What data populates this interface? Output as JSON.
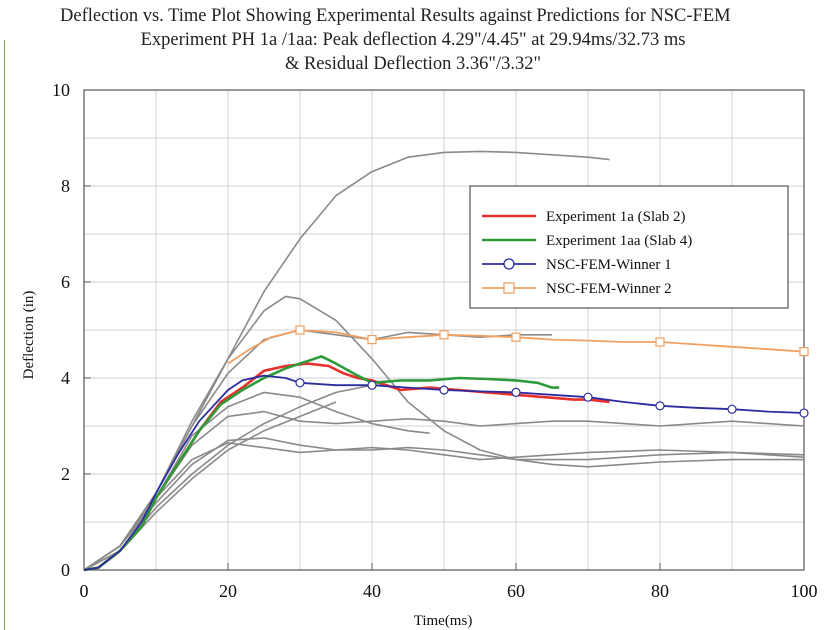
{
  "title_lines": [
    "Deflection vs. Time Plot Showing Experimental Results against Predictions for NSC-FEM",
    "Experiment PH 1a /1aa: Peak deflection 4.29\"/4.45\" at 29.94ms/32.73 ms",
    "& Residual Deflection 3.36\"/3.32\""
  ],
  "chart_data": {
    "type": "line",
    "xlabel": "Time(ms)",
    "ylabel": "Deflection (in)",
    "xlim": [
      0,
      100
    ],
    "ylim": [
      0,
      10
    ],
    "xticks": [
      "0",
      "20",
      "40",
      "60",
      "80",
      "100"
    ],
    "yticks": [
      "0",
      "2",
      "4",
      "6",
      "8",
      "10"
    ],
    "grid": true,
    "legend_position": "right",
    "colors": {
      "Experiment 1a (Slab 2)": "#e8302c",
      "Experiment 1aa (Slab 4)": "#2e9a3a",
      "NSC-FEM-Winner 1": "#2c2ca0",
      "NSC-FEM-Winner 2": "#f0a060",
      "other predictions": "#8a8a8a"
    },
    "series": [
      {
        "name": "Experiment 1a (Slab 2)",
        "x": [
          0,
          2,
          5,
          8,
          10,
          13,
          16,
          19,
          22,
          25,
          28,
          31,
          34,
          36,
          38,
          40,
          44,
          48,
          52,
          56,
          60,
          64,
          68,
          70,
          73
        ],
        "y": [
          0,
          0.05,
          0.4,
          0.9,
          1.5,
          2.2,
          2.9,
          3.5,
          3.8,
          4.15,
          4.25,
          4.3,
          4.25,
          4.1,
          4.0,
          3.95,
          3.75,
          3.8,
          3.75,
          3.7,
          3.65,
          3.6,
          3.55,
          3.55,
          3.5
        ]
      },
      {
        "name": "Experiment 1aa (Slab 4)",
        "x": [
          0,
          2,
          5,
          8,
          10,
          13,
          16,
          19,
          22,
          25,
          28,
          31,
          33,
          35,
          38,
          40,
          44,
          48,
          52,
          56,
          60,
          63,
          65,
          66
        ],
        "y": [
          0,
          0.05,
          0.4,
          0.9,
          1.5,
          2.2,
          2.9,
          3.45,
          3.75,
          4.0,
          4.2,
          4.35,
          4.45,
          4.3,
          4.05,
          3.9,
          3.95,
          3.95,
          4.0,
          3.98,
          3.95,
          3.9,
          3.8,
          3.8
        ]
      },
      {
        "name": "NSC-FEM-Winner 1",
        "x": [
          0,
          2,
          5,
          8,
          10,
          13,
          16,
          20,
          22,
          25,
          28,
          30,
          35,
          40,
          45,
          50,
          55,
          60,
          65,
          70,
          75,
          80,
          85,
          90,
          95,
          100
        ],
        "y": [
          0,
          0.05,
          0.4,
          1.0,
          1.6,
          2.4,
          3.1,
          3.75,
          3.95,
          4.05,
          4.0,
          3.9,
          3.85,
          3.85,
          3.8,
          3.75,
          3.72,
          3.7,
          3.65,
          3.6,
          3.5,
          3.42,
          3.38,
          3.35,
          3.3,
          3.27
        ],
        "markers_x": [
          30,
          40,
          50,
          60,
          70,
          80,
          90,
          100
        ]
      },
      {
        "name": "NSC-FEM-Winner 2",
        "x": [
          20,
          23,
          26,
          30,
          35,
          40,
          45,
          50,
          55,
          60,
          65,
          70,
          75,
          80,
          85,
          90,
          95,
          100
        ],
        "y": [
          4.3,
          4.6,
          4.85,
          5.0,
          4.95,
          4.8,
          4.85,
          4.9,
          4.88,
          4.85,
          4.8,
          4.78,
          4.75,
          4.75,
          4.7,
          4.65,
          4.6,
          4.55
        ],
        "markers_x": [
          30,
          40,
          50,
          60,
          80,
          100
        ]
      },
      {
        "name": "",
        "x": [
          0,
          5,
          10,
          15,
          20,
          25,
          30,
          35,
          40,
          45,
          50,
          55,
          60,
          65,
          70,
          73
        ],
        "y": [
          0,
          0.5,
          1.6,
          3.0,
          4.4,
          5.8,
          6.9,
          7.8,
          8.3,
          8.6,
          8.7,
          8.72,
          8.7,
          8.65,
          8.6,
          8.55
        ]
      },
      {
        "name": "",
        "x": [
          0,
          5,
          10,
          15,
          20,
          25,
          28,
          30,
          35,
          40,
          45,
          50,
          55,
          60,
          65,
          70,
          75,
          80,
          90,
          100
        ],
        "y": [
          0,
          0.5,
          1.6,
          3.1,
          4.4,
          5.4,
          5.7,
          5.65,
          5.2,
          4.4,
          3.5,
          2.9,
          2.5,
          2.3,
          2.2,
          2.15,
          2.2,
          2.25,
          2.3,
          2.3
        ]
      },
      {
        "name": "",
        "x": [
          0,
          5,
          10,
          15,
          20,
          25,
          30,
          35,
          40,
          45,
          50,
          55,
          60,
          65
        ],
        "y": [
          0,
          0.5,
          1.6,
          3.0,
          4.1,
          4.8,
          5.0,
          4.9,
          4.8,
          4.95,
          4.9,
          4.85,
          4.9,
          4.9
        ]
      },
      {
        "name": "",
        "x": [
          0,
          5,
          10,
          15,
          20,
          25,
          30,
          35,
          40,
          45,
          50,
          55,
          60,
          65,
          70,
          75,
          80,
          85,
          90,
          95,
          100
        ],
        "y": [
          0,
          0.5,
          1.5,
          2.6,
          3.2,
          3.3,
          3.1,
          3.05,
          3.1,
          3.15,
          3.1,
          3.0,
          3.05,
          3.1,
          3.1,
          3.05,
          3.0,
          3.05,
          3.1,
          3.05,
          3.0
        ]
      },
      {
        "name": "",
        "x": [
          0,
          5,
          10,
          15,
          20,
          25,
          30,
          35,
          40,
          45,
          48
        ],
        "y": [
          0,
          0.5,
          1.5,
          2.8,
          3.4,
          3.7,
          3.6,
          3.3,
          3.05,
          2.9,
          2.85
        ]
      },
      {
        "name": "",
        "x": [
          0,
          5,
          10,
          15,
          20,
          25,
          30,
          35,
          40,
          45,
          50,
          55,
          60,
          70,
          80,
          90,
          100
        ],
        "y": [
          0,
          0.5,
          1.4,
          2.2,
          2.7,
          2.75,
          2.6,
          2.5,
          2.5,
          2.55,
          2.5,
          2.4,
          2.3,
          2.3,
          2.4,
          2.45,
          2.4
        ]
      },
      {
        "name": "",
        "x": [
          0,
          5,
          10,
          15,
          20,
          25,
          30,
          35,
          40,
          45,
          50,
          55,
          60,
          65,
          70,
          80,
          90,
          100
        ],
        "y": [
          0,
          0.5,
          1.5,
          2.3,
          2.65,
          2.55,
          2.45,
          2.5,
          2.55,
          2.5,
          2.4,
          2.3,
          2.35,
          2.4,
          2.45,
          2.5,
          2.45,
          2.35
        ]
      },
      {
        "name": "",
        "x": [
          0,
          5,
          10,
          15,
          20,
          25,
          30,
          35,
          40,
          42
        ],
        "y": [
          0,
          0.4,
          1.3,
          2.0,
          2.6,
          3.05,
          3.4,
          3.7,
          3.85,
          3.85
        ]
      },
      {
        "name": "",
        "x": [
          0,
          5,
          10,
          15,
          20,
          25,
          30,
          35
        ],
        "y": [
          0,
          0.4,
          1.2,
          1.9,
          2.5,
          2.9,
          3.2,
          3.5
        ]
      }
    ]
  }
}
